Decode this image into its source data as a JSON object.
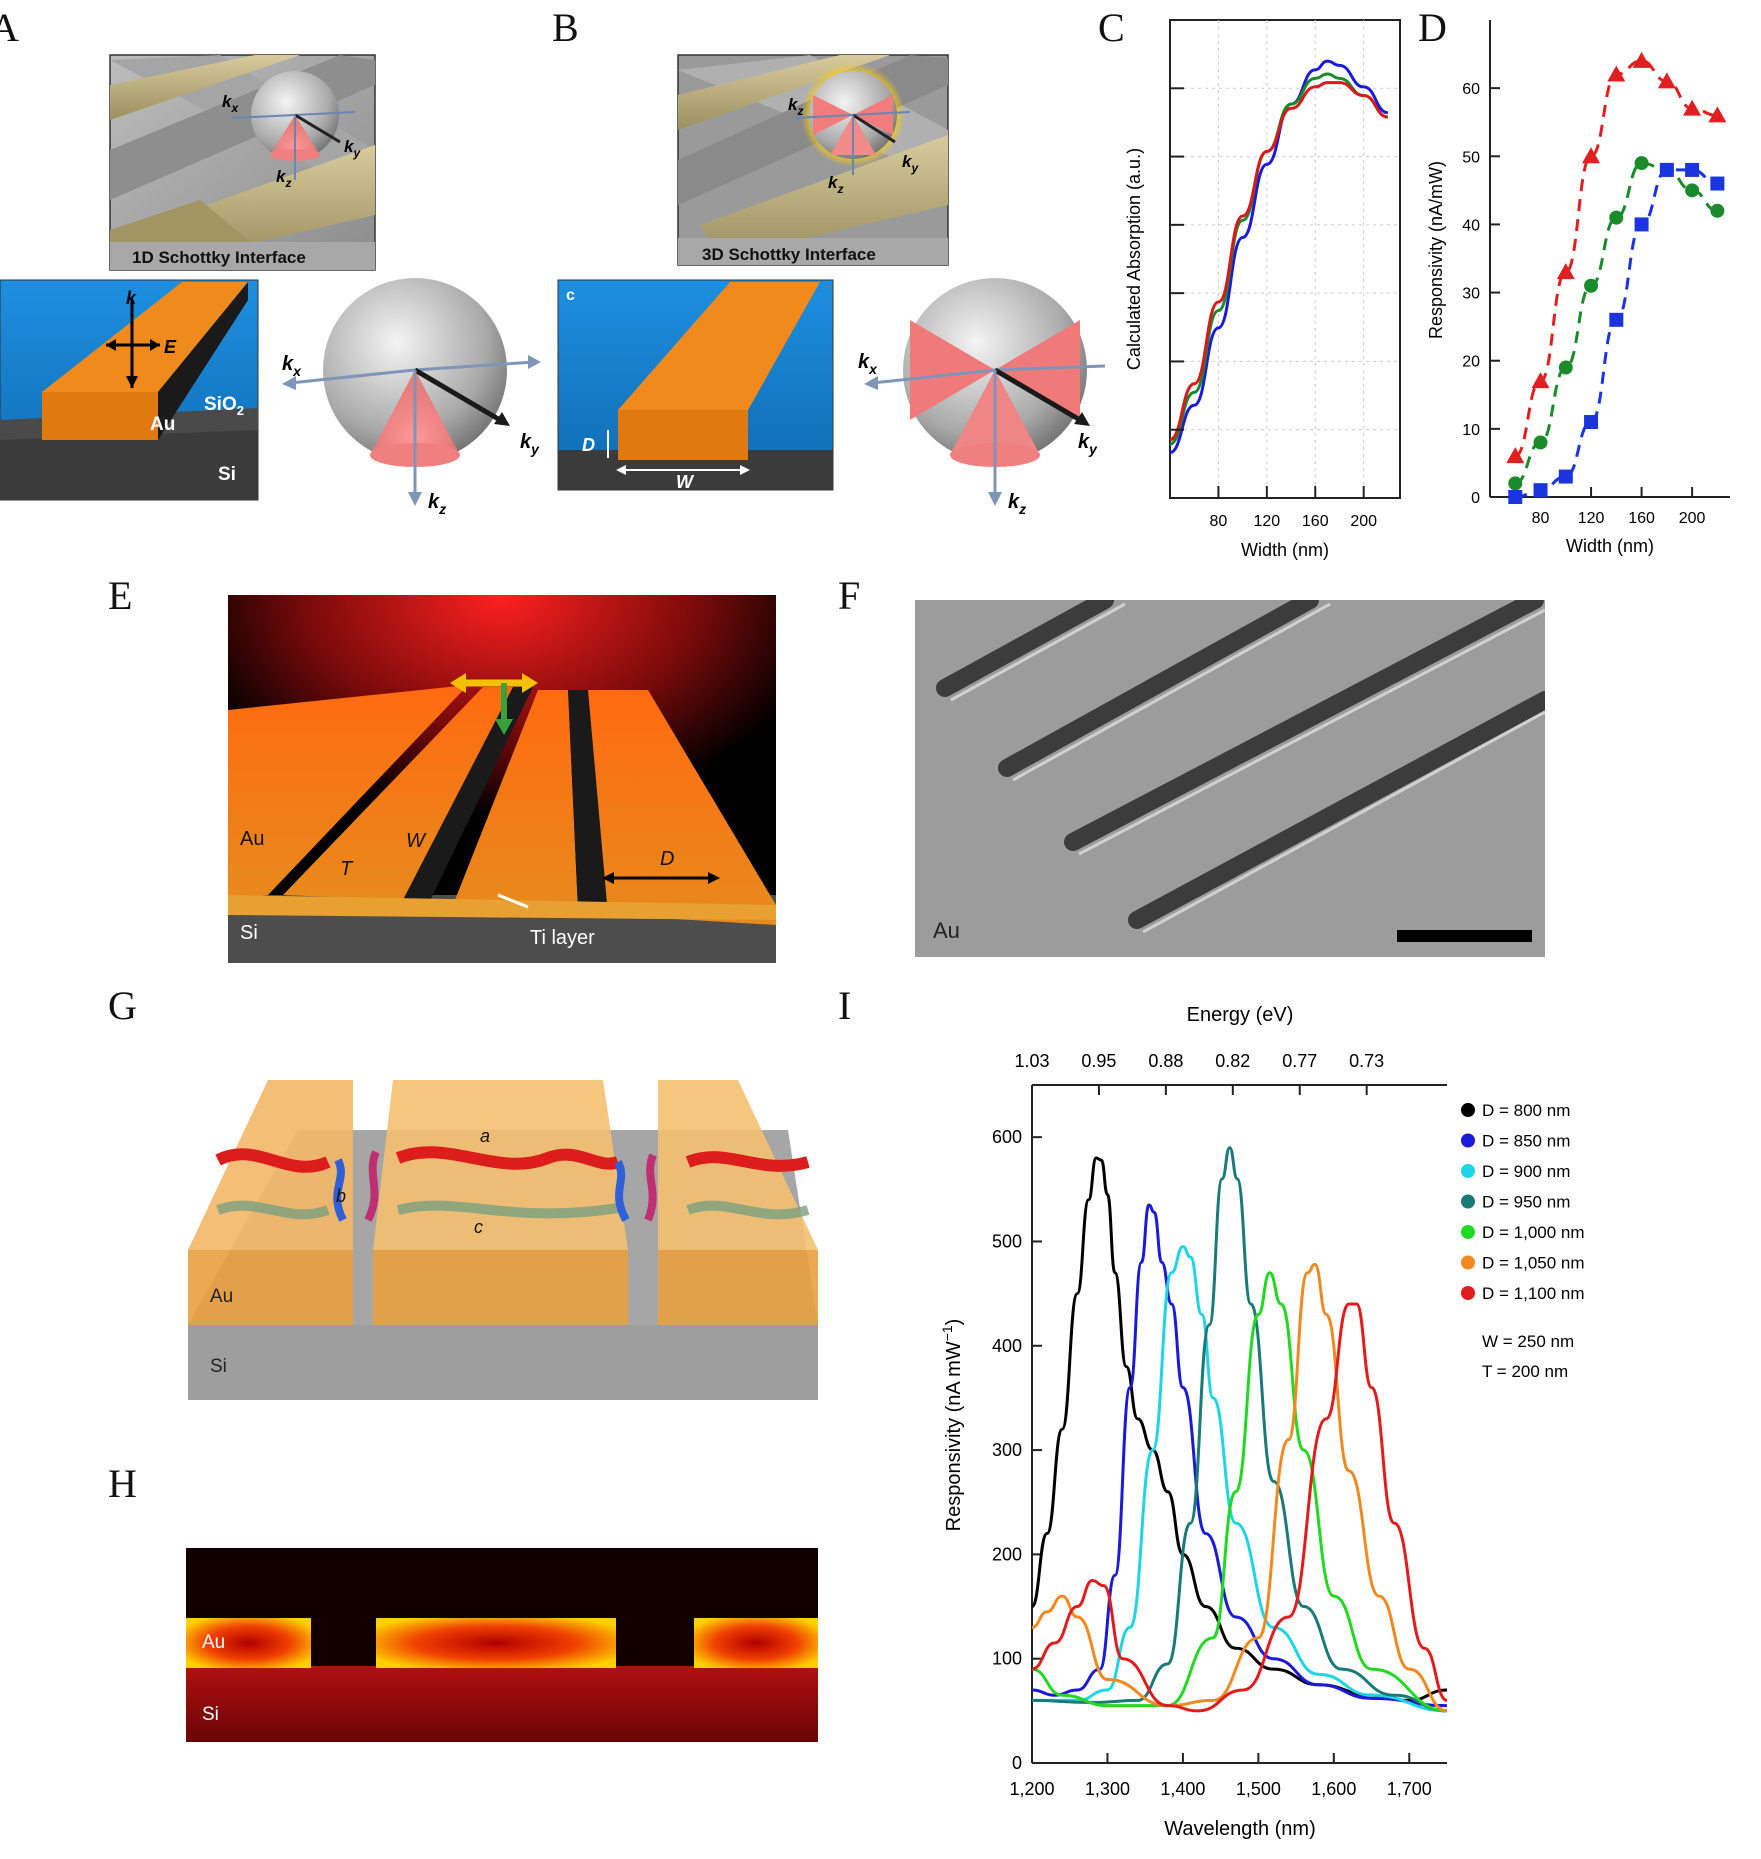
{
  "panel_labels": {
    "a": "A",
    "b": "B",
    "c": "C",
    "d": "D",
    "e": "E",
    "f": "F",
    "g": "G",
    "h": "H",
    "i": "I"
  },
  "panel_a": {
    "sem_caption": "1D Schottky Interface",
    "k": "k",
    "E": "E",
    "au": "Au",
    "sio2": "SiO",
    "sio2_sub": "2",
    "si": "Si",
    "kx": "k",
    "kx_sub": "x",
    "ky": "k",
    "ky_sub": "y",
    "kz": "k",
    "kz_sub": "z"
  },
  "panel_b": {
    "sem_caption": "3D Schottky Interface",
    "c": "c",
    "D": "D",
    "W": "W",
    "kx": "k",
    "kx_sub": "x",
    "ky": "k",
    "ky_sub": "y",
    "kz": "k",
    "kz_sub": "z"
  },
  "panel_e": {
    "au": "Au",
    "si": "Si",
    "T": "T",
    "W": "W",
    "D": "D",
    "ti": "Ti layer"
  },
  "panel_f": {
    "au": "Au"
  },
  "panel_g": {
    "a": "a",
    "b": "b",
    "c": "c",
    "au": "Au",
    "si": "Si"
  },
  "panel_h": {
    "au": "Au",
    "si": "Si"
  },
  "chart_data": [
    {
      "id": "C",
      "type": "line",
      "xlabel": "Width (nm)",
      "ylabel": "Calculated Absorption (a.u.)",
      "xlim": [
        40,
        230
      ],
      "xticks": [
        80,
        120,
        160,
        200
      ],
      "grid": true,
      "series": [
        {
          "color": "#1a1ad8",
          "x": [
            40,
            60,
            80,
            100,
            120,
            140,
            160,
            170,
            180,
            200,
            220
          ],
          "y": [
            0.05,
            0.16,
            0.34,
            0.55,
            0.72,
            0.86,
            0.94,
            0.96,
            0.95,
            0.9,
            0.84
          ]
        },
        {
          "color": "#1b8a2a",
          "x": [
            40,
            60,
            80,
            100,
            120,
            140,
            160,
            170,
            180,
            200,
            220
          ],
          "y": [
            0.07,
            0.19,
            0.38,
            0.59,
            0.75,
            0.86,
            0.92,
            0.93,
            0.92,
            0.88,
            0.83
          ]
        },
        {
          "color": "#d81a1a",
          "x": [
            40,
            60,
            80,
            100,
            120,
            140,
            160,
            170,
            180,
            200,
            220
          ],
          "y": [
            0.08,
            0.21,
            0.4,
            0.6,
            0.75,
            0.85,
            0.9,
            0.91,
            0.91,
            0.88,
            0.83
          ]
        }
      ]
    },
    {
      "id": "D",
      "type": "scatter",
      "xlabel": "Width (nm)",
      "ylabel": "Responsivity (nA/mW)",
      "xlim": [
        40,
        230
      ],
      "ylim": [
        0,
        70
      ],
      "xticks": [
        80,
        120,
        160,
        200
      ],
      "yticks": [
        0,
        10,
        20,
        30,
        40,
        50,
        60
      ],
      "series": [
        {
          "color": "#e02020",
          "marker": "triangle",
          "x": [
            60,
            80,
            100,
            120,
            140,
            160,
            180,
            200,
            220
          ],
          "y": [
            6,
            17,
            33,
            50,
            62,
            64,
            61,
            57,
            56
          ]
        },
        {
          "color": "#1b8a2a",
          "marker": "circle",
          "x": [
            60,
            80,
            100,
            120,
            140,
            160,
            180,
            200,
            220
          ],
          "y": [
            2,
            8,
            19,
            31,
            41,
            49,
            48,
            45,
            42
          ]
        },
        {
          "color": "#1a35e0",
          "marker": "square",
          "x": [
            60,
            80,
            100,
            120,
            140,
            160,
            180,
            200,
            220
          ],
          "y": [
            0,
            1,
            3,
            11,
            26,
            40,
            48,
            48,
            46
          ]
        }
      ]
    },
    {
      "id": "I",
      "type": "line",
      "xlabel": "Wavelength (nm)",
      "ylabel": "Responsivity (nA mW",
      "ylabel_sup": "−1",
      "ylabel_end": ")",
      "top_label": "Energy (eV)",
      "top_ticks": [
        "1.03",
        "0.95",
        "0.88",
        "0.82",
        "0.77",
        "0.73"
      ],
      "xlim": [
        1200,
        1750
      ],
      "ylim": [
        0,
        650
      ],
      "xticks": [
        1200,
        1300,
        1400,
        1500,
        1600,
        1700
      ],
      "xtick_labels": [
        "1,200",
        "1,300",
        "1,400",
        "1,500",
        "1,600",
        "1,700"
      ],
      "yticks": [
        0,
        100,
        200,
        300,
        400,
        500,
        600
      ],
      "legend_extra": [
        "W = 250 nm",
        "T = 200 nm"
      ],
      "series": [
        {
          "name": "D = 800 nm",
          "color": "#000000",
          "x": [
            1200,
            1220,
            1240,
            1260,
            1275,
            1285,
            1292,
            1300,
            1310,
            1325,
            1340,
            1360,
            1380,
            1400,
            1430,
            1470,
            1520,
            1580,
            1650,
            1700,
            1750
          ],
          "y": [
            150,
            220,
            320,
            450,
            540,
            580,
            578,
            545,
            470,
            380,
            330,
            300,
            260,
            200,
            150,
            110,
            90,
            75,
            65,
            60,
            70
          ]
        },
        {
          "name": "D = 850 nm",
          "color": "#1a1ad8",
          "x": [
            1200,
            1230,
            1260,
            1290,
            1310,
            1330,
            1345,
            1355,
            1362,
            1372,
            1385,
            1400,
            1430,
            1470,
            1520,
            1580,
            1650,
            1750
          ],
          "y": [
            70,
            65,
            70,
            90,
            180,
            360,
            480,
            535,
            528,
            480,
            440,
            360,
            220,
            140,
            100,
            75,
            62,
            55
          ]
        },
        {
          "name": "D = 900 nm",
          "color": "#20d4e8",
          "x": [
            1200,
            1260,
            1300,
            1330,
            1360,
            1385,
            1400,
            1410,
            1425,
            1440,
            1470,
            1520,
            1580,
            1650,
            1750
          ],
          "y": [
            60,
            60,
            70,
            130,
            300,
            470,
            495,
            485,
            430,
            350,
            230,
            130,
            85,
            65,
            50
          ]
        },
        {
          "name": "D = 950 nm",
          "color": "#1a7a78",
          "x": [
            1200,
            1280,
            1340,
            1380,
            1410,
            1435,
            1452,
            1462,
            1472,
            1490,
            1520,
            1560,
            1610,
            1680,
            1750
          ],
          "y": [
            60,
            58,
            60,
            95,
            230,
            420,
            560,
            590,
            560,
            440,
            270,
            150,
            90,
            65,
            50
          ]
        },
        {
          "name": "D = 1,000 nm",
          "color": "#22d822",
          "x": [
            1200,
            1240,
            1300,
            1380,
            1440,
            1470,
            1500,
            1515,
            1530,
            1560,
            1600,
            1650,
            1750
          ],
          "y": [
            90,
            65,
            55,
            55,
            120,
            260,
            430,
            470,
            440,
            300,
            160,
            90,
            50
          ]
        },
        {
          "name": "D = 1,050 nm",
          "color": "#f08a20",
          "x": [
            1200,
            1220,
            1240,
            1260,
            1300,
            1380,
            1440,
            1500,
            1540,
            1565,
            1575,
            1590,
            1620,
            1660,
            1700,
            1750
          ],
          "y": [
            130,
            145,
            160,
            140,
            80,
            55,
            60,
            120,
            310,
            470,
            478,
            430,
            280,
            160,
            90,
            50
          ]
        },
        {
          "name": "D = 1,100 nm",
          "color": "#e01c1c",
          "x": [
            1200,
            1230,
            1260,
            1280,
            1295,
            1320,
            1380,
            1420,
            1480,
            1540,
            1590,
            1620,
            1630,
            1650,
            1680,
            1720,
            1750
          ],
          "y": [
            90,
            115,
            150,
            175,
            170,
            100,
            55,
            50,
            70,
            140,
            330,
            440,
            440,
            360,
            230,
            110,
            60
          ]
        }
      ]
    }
  ]
}
